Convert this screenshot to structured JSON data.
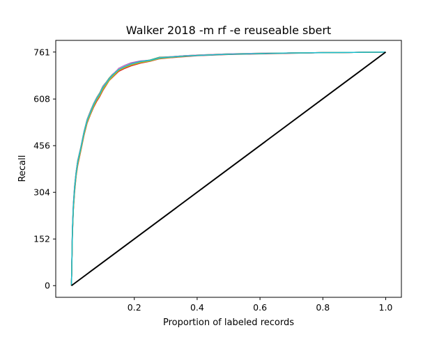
{
  "chart_data": {
    "type": "line",
    "title": "Walker 2018 -m rf -e reuseable sbert",
    "xlabel": "Proportion of labeled records",
    "ylabel": "Recall",
    "xlim": [
      -0.05,
      1.05
    ],
    "ylim": [
      -38,
      799
    ],
    "x_ticks": [
      0.2,
      0.4,
      0.6,
      0.8,
      1.0
    ],
    "x_tick_labels": [
      "0.2",
      "0.4",
      "0.6",
      "0.8",
      "1.0"
    ],
    "y_ticks": [
      0,
      152,
      304,
      456,
      608,
      761
    ],
    "y_tick_labels": [
      "0",
      "152",
      "304",
      "456",
      "608",
      "761"
    ],
    "grid": false,
    "legend": "none",
    "total_relevant": 761,
    "series": [
      {
        "color": "#1f77b4",
        "x": [
          0,
          0.003,
          0.006,
          0.01,
          0.015,
          0.02,
          0.03,
          0.04,
          0.05,
          0.06,
          0.07,
          0.08,
          0.09,
          0.1,
          0.11,
          0.12,
          0.13,
          0.14,
          0.15,
          0.17,
          0.19,
          0.22,
          0.25,
          0.28,
          0.32,
          0.36,
          0.4,
          0.45,
          0.5,
          0.6,
          0.7,
          0.8,
          0.9,
          1.0
        ],
        "y": [
          0,
          180,
          260,
          320,
          370,
          405,
          450,
          500,
          540,
          565,
          590,
          610,
          625,
          648,
          660,
          675,
          686,
          695,
          705,
          715,
          722,
          730,
          733,
          742,
          745,
          748,
          750,
          752,
          754,
          756,
          758,
          759,
          760,
          761
        ]
      },
      {
        "color": "#ff7f0e",
        "x": [
          0,
          0.003,
          0.006,
          0.01,
          0.015,
          0.02,
          0.03,
          0.04,
          0.05,
          0.06,
          0.07,
          0.08,
          0.09,
          0.1,
          0.11,
          0.12,
          0.13,
          0.14,
          0.15,
          0.17,
          0.19,
          0.22,
          0.25,
          0.28,
          0.32,
          0.36,
          0.4,
          0.45,
          0.5,
          0.6,
          0.7,
          0.8,
          0.9,
          1.0
        ],
        "y": [
          0,
          170,
          250,
          312,
          362,
          398,
          445,
          495,
          535,
          560,
          585,
          606,
          620,
          640,
          655,
          670,
          680,
          690,
          700,
          710,
          718,
          727,
          733,
          740,
          744,
          747,
          750,
          752,
          754,
          756,
          758,
          759,
          760,
          761
        ]
      },
      {
        "color": "#2ca02c",
        "x": [
          0,
          0.003,
          0.006,
          0.01,
          0.015,
          0.02,
          0.03,
          0.04,
          0.05,
          0.06,
          0.07,
          0.08,
          0.09,
          0.1,
          0.11,
          0.12,
          0.13,
          0.14,
          0.15,
          0.17,
          0.19,
          0.22,
          0.25,
          0.28,
          0.32,
          0.36,
          0.4,
          0.45,
          0.5,
          0.6,
          0.7,
          0.8,
          0.9,
          1.0
        ],
        "y": [
          0,
          185,
          265,
          325,
          372,
          408,
          452,
          502,
          542,
          568,
          592,
          612,
          628,
          650,
          662,
          676,
          688,
          696,
          706,
          716,
          724,
          731,
          735,
          744,
          746,
          749,
          751,
          753,
          755,
          757,
          758,
          759,
          760,
          761
        ]
      },
      {
        "color": "#d62728",
        "x": [
          0,
          0.003,
          0.006,
          0.01,
          0.015,
          0.02,
          0.03,
          0.04,
          0.05,
          0.06,
          0.07,
          0.08,
          0.09,
          0.1,
          0.11,
          0.12,
          0.13,
          0.14,
          0.15,
          0.17,
          0.19,
          0.22,
          0.25,
          0.28,
          0.32,
          0.36,
          0.4,
          0.45,
          0.5,
          0.6,
          0.7,
          0.8,
          0.9,
          1.0
        ],
        "y": [
          0,
          165,
          245,
          305,
          358,
          392,
          440,
          490,
          530,
          556,
          580,
          600,
          616,
          636,
          652,
          668,
          678,
          688,
          698,
          708,
          716,
          725,
          731,
          739,
          743,
          746,
          749,
          751,
          753,
          755,
          757,
          759,
          760,
          761
        ]
      },
      {
        "color": "#9467bd",
        "x": [
          0,
          0.003,
          0.006,
          0.01,
          0.015,
          0.02,
          0.03,
          0.04,
          0.05,
          0.06,
          0.07,
          0.08,
          0.09,
          0.1,
          0.11,
          0.12,
          0.13,
          0.14,
          0.15,
          0.17,
          0.19,
          0.22,
          0.25,
          0.28,
          0.32,
          0.36,
          0.4,
          0.45,
          0.5,
          0.6,
          0.7,
          0.8,
          0.9,
          1.0
        ],
        "y": [
          0,
          178,
          258,
          318,
          368,
          402,
          448,
          498,
          538,
          562,
          588,
          608,
          624,
          645,
          658,
          672,
          684,
          694,
          708,
          718,
          726,
          732,
          734,
          741,
          745,
          748,
          750,
          752,
          754,
          756,
          758,
          759,
          760,
          761
        ]
      },
      {
        "color": "#8c564b",
        "x": [
          0,
          0.003,
          0.006,
          0.01,
          0.015,
          0.02,
          0.03,
          0.04,
          0.05,
          0.06,
          0.07,
          0.08,
          0.09,
          0.1,
          0.11,
          0.12,
          0.13,
          0.14,
          0.15,
          0.17,
          0.19,
          0.22,
          0.25,
          0.28,
          0.32,
          0.36,
          0.4,
          0.45,
          0.5,
          0.6,
          0.7,
          0.8,
          0.9,
          1.0
        ],
        "y": [
          0,
          172,
          252,
          315,
          365,
          400,
          446,
          496,
          536,
          561,
          586,
          607,
          622,
          642,
          656,
          671,
          682,
          692,
          702,
          712,
          720,
          728,
          732,
          740,
          744,
          747,
          750,
          752,
          754,
          756,
          758,
          759,
          760,
          761
        ]
      },
      {
        "color": "#e377c2",
        "x": [
          0,
          0.003,
          0.006,
          0.01,
          0.015,
          0.02,
          0.03,
          0.04,
          0.05,
          0.06,
          0.07,
          0.08,
          0.09,
          0.1,
          0.11,
          0.12,
          0.13,
          0.14,
          0.15,
          0.17,
          0.19,
          0.22,
          0.25,
          0.28,
          0.32,
          0.36,
          0.4,
          0.45,
          0.5,
          0.6,
          0.7,
          0.8,
          0.9,
          1.0
        ],
        "y": [
          0,
          182,
          262,
          322,
          371,
          406,
          451,
          501,
          541,
          566,
          591,
          611,
          626,
          649,
          661,
          674,
          687,
          697,
          707,
          717,
          723,
          730,
          734,
          743,
          746,
          749,
          751,
          753,
          755,
          757,
          758,
          759,
          760,
          761
        ]
      },
      {
        "color": "#7f7f7f",
        "x": [
          0,
          0.003,
          0.006,
          0.01,
          0.015,
          0.02,
          0.03,
          0.04,
          0.05,
          0.06,
          0.07,
          0.08,
          0.09,
          0.1,
          0.11,
          0.12,
          0.13,
          0.14,
          0.15,
          0.17,
          0.19,
          0.22,
          0.25,
          0.28,
          0.32,
          0.36,
          0.4,
          0.45,
          0.5,
          0.6,
          0.7,
          0.8,
          0.9,
          1.0
        ],
        "y": [
          0,
          175,
          255,
          316,
          366,
          401,
          447,
          497,
          537,
          562,
          587,
          607,
          623,
          644,
          657,
          671,
          683,
          693,
          703,
          713,
          721,
          729,
          733,
          741,
          745,
          748,
          750,
          752,
          754,
          756,
          758,
          759,
          760,
          761
        ]
      },
      {
        "color": "#bcbd22",
        "x": [
          0,
          0.003,
          0.006,
          0.01,
          0.015,
          0.02,
          0.03,
          0.04,
          0.05,
          0.06,
          0.07,
          0.08,
          0.09,
          0.1,
          0.11,
          0.12,
          0.13,
          0.14,
          0.15,
          0.17,
          0.19,
          0.22,
          0.25,
          0.28,
          0.32,
          0.36,
          0.4,
          0.45,
          0.5,
          0.6,
          0.7,
          0.8,
          0.9,
          1.0
        ],
        "y": [
          0,
          168,
          248,
          310,
          360,
          396,
          443,
          493,
          533,
          558,
          583,
          604,
          619,
          639,
          654,
          669,
          680,
          690,
          701,
          711,
          719,
          727,
          732,
          740,
          744,
          747,
          750,
          752,
          754,
          756,
          758,
          759,
          760,
          761
        ]
      },
      {
        "color": "#17becf",
        "x": [
          0,
          0.003,
          0.006,
          0.01,
          0.015,
          0.02,
          0.03,
          0.04,
          0.05,
          0.06,
          0.07,
          0.08,
          0.09,
          0.1,
          0.11,
          0.12,
          0.13,
          0.14,
          0.15,
          0.17,
          0.19,
          0.22,
          0.25,
          0.28,
          0.32,
          0.36,
          0.4,
          0.45,
          0.5,
          0.6,
          0.7,
          0.8,
          0.9,
          1.0
        ],
        "y": [
          0,
          177,
          257,
          317,
          367,
          403,
          449,
          499,
          539,
          563,
          589,
          609,
          624,
          646,
          659,
          673,
          685,
          695,
          704,
          714,
          722,
          730,
          734,
          742,
          745,
          748,
          750,
          752,
          754,
          756,
          758,
          759,
          760,
          761
        ]
      },
      {
        "color": "#000000",
        "x": [
          0,
          1.0
        ],
        "y": [
          0,
          761
        ]
      }
    ]
  }
}
